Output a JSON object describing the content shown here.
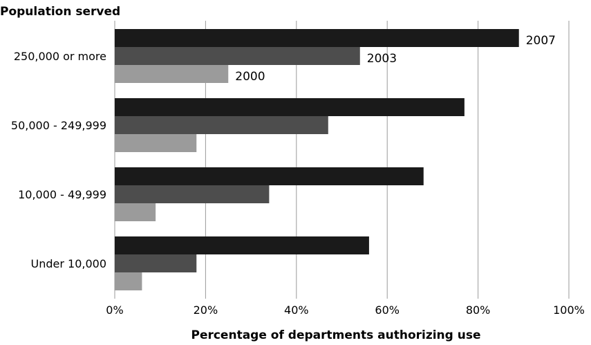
{
  "chart_data": {
    "type": "bar",
    "orientation": "horizontal",
    "title": "",
    "ylabel": "Population served",
    "xlabel": "Percentage  of departments authorizing use",
    "categories": [
      "250,000 or more",
      "50,000 - 249,999",
      "10,000 - 49,999",
      "Under 10,000"
    ],
    "series": [
      {
        "name": "2007",
        "color": "#1a1a1a",
        "values": [
          89,
          77,
          68,
          56
        ]
      },
      {
        "name": "2003",
        "color": "#4d4d4d",
        "values": [
          54,
          47,
          34,
          18
        ]
      },
      {
        "name": "2000",
        "color": "#9b9b9b",
        "values": [
          25,
          18,
          9,
          6
        ]
      }
    ],
    "xlim": [
      0,
      100
    ],
    "xticks": [
      "0%",
      "20%",
      "40%",
      "60%",
      "80%",
      "100%"
    ],
    "grid": true,
    "legend": "series names labeled directly on the bars of the top category"
  }
}
